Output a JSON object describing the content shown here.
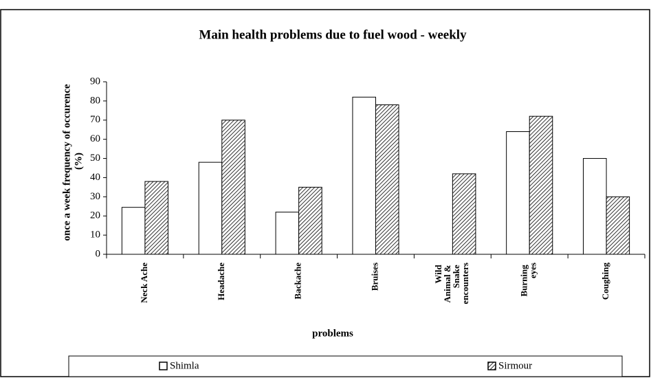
{
  "chart_data": {
    "type": "bar",
    "title": "Main health problems due to fuel wood - weekly",
    "x_label": "problems",
    "y_label": "once a week frequency of occurence (%)",
    "categories": [
      "Neck Ache",
      "Headache",
      "Backache",
      "Bruises",
      "Wild Animal & Snake encounters",
      "Burning eyes",
      "Coughing"
    ],
    "series": [
      {
        "name": "Shimla",
        "color": "#ffffff",
        "pattern": "none",
        "values": [
          24.5,
          48,
          22,
          82,
          0,
          64,
          50
        ]
      },
      {
        "name": "Sirmour",
        "color": "#ffffff",
        "pattern": "hatch",
        "values": [
          38,
          70,
          35,
          78,
          42,
          72,
          30
        ]
      }
    ],
    "ylim": [
      0,
      90
    ],
    "yticks": [
      0,
      10,
      20,
      30,
      40,
      50,
      60,
      70,
      80,
      90
    ],
    "grid": false,
    "legend": "bottom"
  }
}
